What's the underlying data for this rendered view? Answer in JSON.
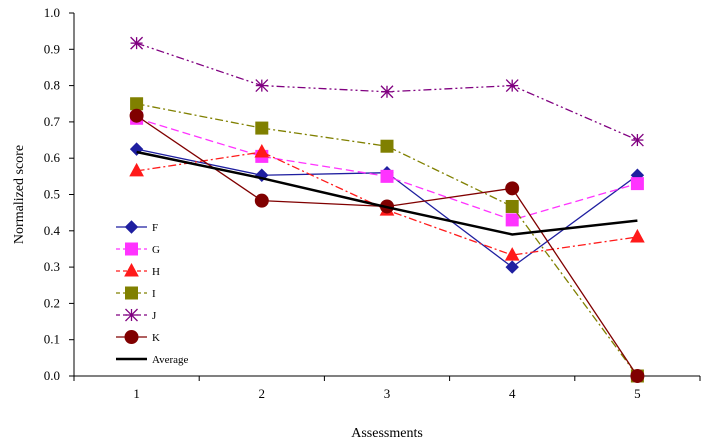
{
  "chart_data": {
    "type": "line",
    "title": "",
    "xlabel": "Assessments",
    "ylabel": "Normalized score",
    "x": [
      1,
      2,
      3,
      4,
      5
    ],
    "ylim": [
      0,
      1.0
    ],
    "yticks": [
      "0.0",
      "0.1",
      "0.2",
      "0.3",
      "0.4",
      "0.5",
      "0.6",
      "0.7",
      "0.8",
      "0.9",
      "1.0"
    ],
    "xticks": [
      "1",
      "2",
      "3",
      "4",
      "5"
    ],
    "grid": false,
    "legend_position": "left",
    "series": [
      {
        "name": "F",
        "values": [
          0.625,
          0.553,
          0.56,
          0.3,
          0.553
        ],
        "color": "#1f1fa0",
        "marker": "diamond",
        "dash": "solid"
      },
      {
        "name": "G",
        "values": [
          0.71,
          0.605,
          0.55,
          0.43,
          0.53
        ],
        "color": "#ff33ff",
        "marker": "square",
        "dash": "dashed"
      },
      {
        "name": "H",
        "values": [
          0.565,
          0.617,
          0.457,
          0.333,
          0.383
        ],
        "color": "#ff1a1a",
        "marker": "triangle",
        "dash": "dashdot"
      },
      {
        "name": "I",
        "values": [
          0.75,
          0.683,
          0.633,
          0.467,
          0.0
        ],
        "color": "#808000",
        "marker": "square",
        "dash": "dashdot"
      },
      {
        "name": "J",
        "values": [
          0.917,
          0.8,
          0.783,
          0.8,
          0.65
        ],
        "color": "#800080",
        "marker": "asterisk",
        "dash": "dashdotdot"
      },
      {
        "name": "K",
        "values": [
          0.717,
          0.483,
          0.467,
          0.517,
          0.0
        ],
        "color": "#800000",
        "marker": "circle",
        "dash": "solid"
      },
      {
        "name": "Average",
        "values": [
          0.617,
          0.545,
          0.465,
          0.39,
          0.428
        ],
        "color": "#000000",
        "marker": "none",
        "dash": "solid-thick"
      }
    ]
  }
}
